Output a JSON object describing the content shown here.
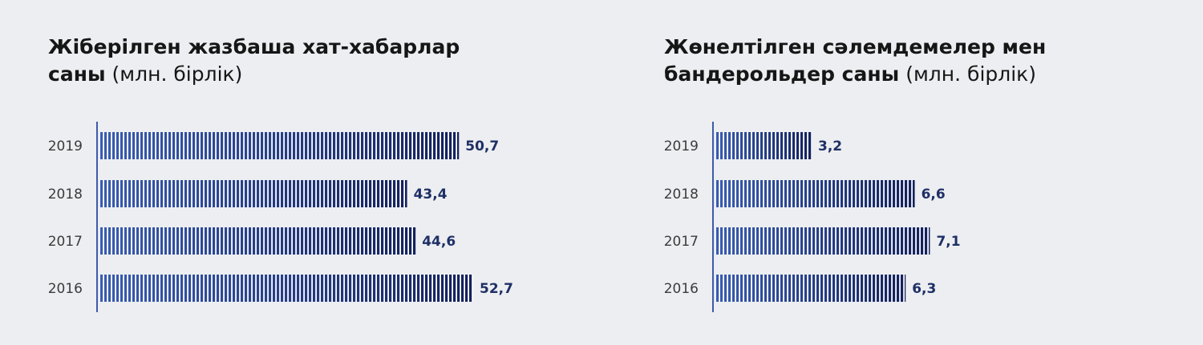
{
  "charts": [
    {
      "title_bold": "Жіберілген жазбаша хат-хабарлар\nсаны",
      "title_normal": " (млн. бірлік)"
    },
    {
      "title_bold": "Жөнелтілген сәлемдемелер мен\nбандерольдер саны",
      "title_normal": " (млн. бірлік)"
    }
  ],
  "chart_data": [
    {
      "type": "bar",
      "orientation": "horizontal",
      "title": "Жіберілген жазбаша хат-хабарлар саны (млн. бірлік)",
      "categories": [
        "2019",
        "2018",
        "2017",
        "2016"
      ],
      "values": [
        50.7,
        43.4,
        44.6,
        52.7
      ],
      "value_labels": [
        "50,7",
        "43,4",
        "44,6",
        "52,7"
      ],
      "xlim": [
        0,
        60
      ],
      "grid": false,
      "colors": {
        "bar_start": "#3a5cb0",
        "bar_end": "#13215c",
        "stripe": "#ffffff",
        "axis": "#3f5aa8",
        "value_text": "#1f2f66"
      }
    },
    {
      "type": "bar",
      "orientation": "horizontal",
      "title": "Жөнелтілген сәлемдемелер мен бандерольдер саны (млн. бірлік)",
      "categories": [
        "2019",
        "2018",
        "2017",
        "2016"
      ],
      "values": [
        3.2,
        6.6,
        7.1,
        6.3
      ],
      "value_labels": [
        "3,2",
        "6,6",
        "7,1",
        "6,3"
      ],
      "xlim": [
        0,
        12.5
      ],
      "grid": false,
      "colors": {
        "bar_start": "#3a5cb0",
        "bar_end": "#13215c",
        "stripe": "#ffffff",
        "axis": "#3f5aa8",
        "value_text": "#1f2f66"
      }
    }
  ]
}
